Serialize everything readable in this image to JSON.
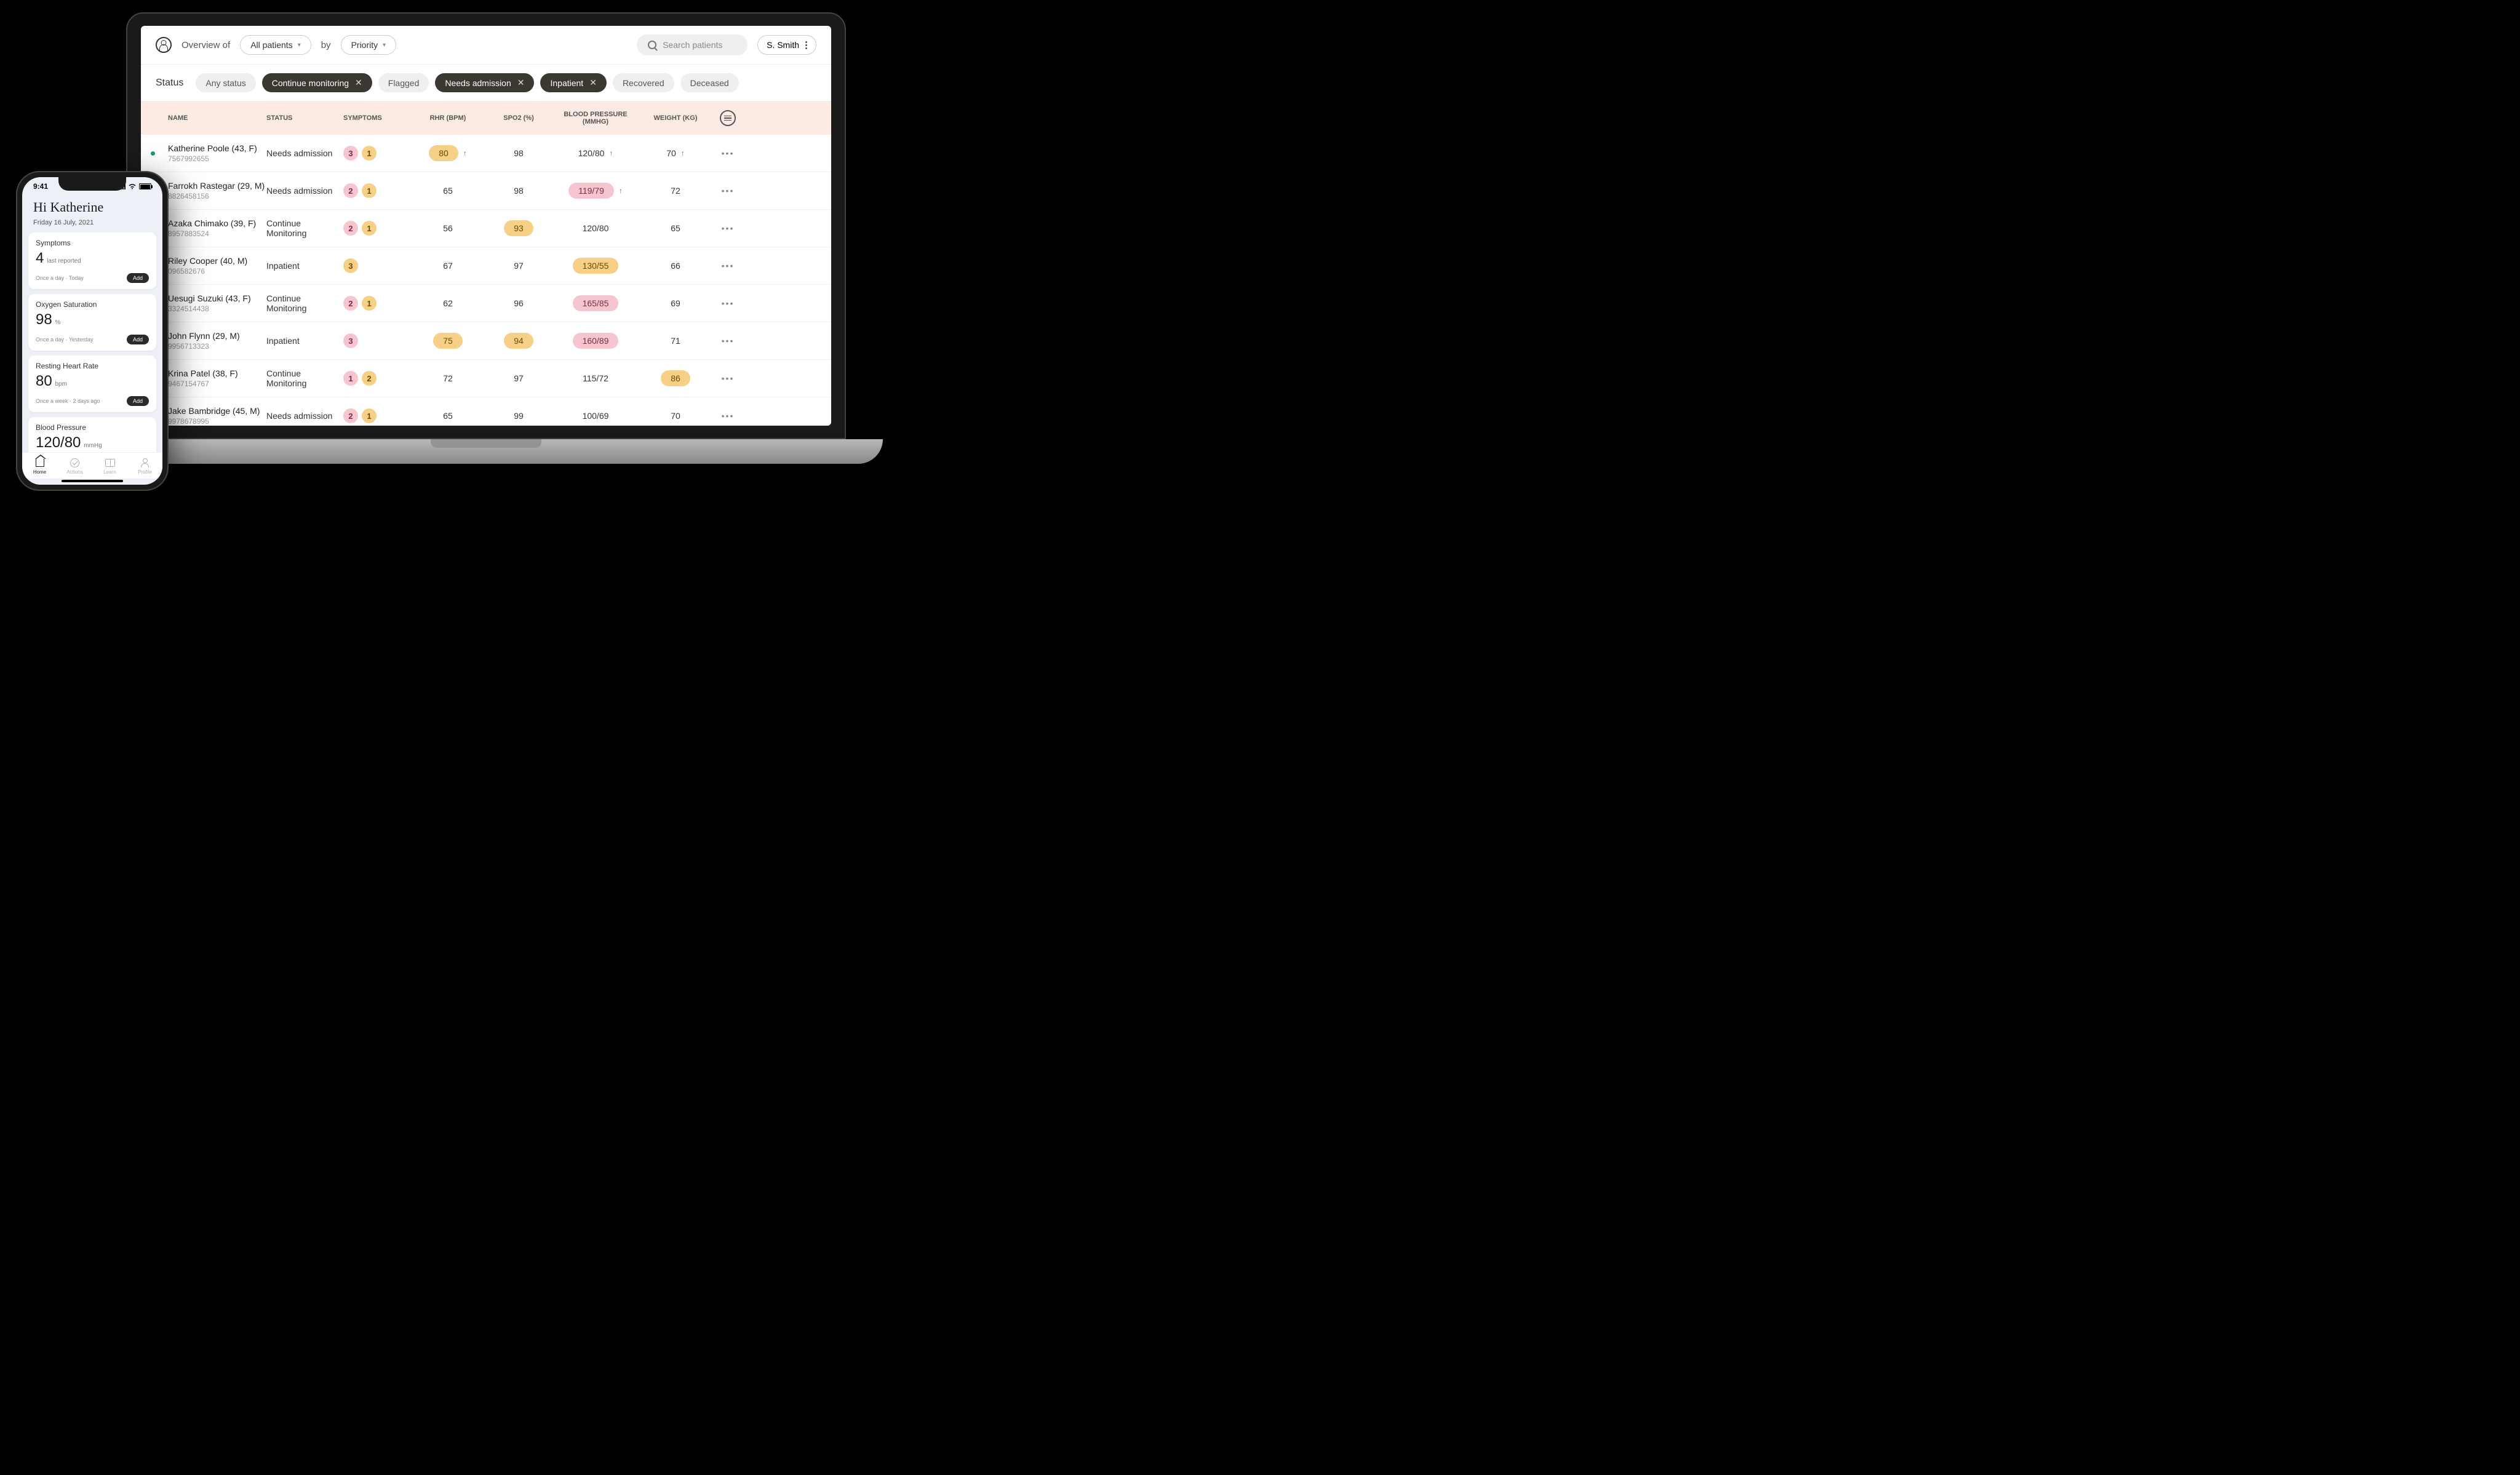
{
  "colors": {
    "pink": "#f6c5cf",
    "amber": "#f6d087",
    "dark_chip": "#3b3832",
    "light_chip": "#f1efed",
    "table_header_bg": "#fbebe3",
    "indicator_green": "#1a9b6c"
  },
  "desktop": {
    "header": {
      "overview_label": "Overview of",
      "patients_filter": "All patients",
      "by_label": "by",
      "sort_filter": "Priority",
      "search_placeholder": "Search patients",
      "user_name": "S. Smith"
    },
    "status": {
      "label": "Status",
      "chips": [
        {
          "label": "Any status",
          "active": false,
          "closable": false
        },
        {
          "label": "Continue monitoring",
          "active": true,
          "closable": true
        },
        {
          "label": "Flagged",
          "active": false,
          "closable": false
        },
        {
          "label": "Needs admission",
          "active": true,
          "closable": true
        },
        {
          "label": "Inpatient",
          "active": true,
          "closable": true
        },
        {
          "label": "Recovered",
          "active": false,
          "closable": false
        },
        {
          "label": "Deceased",
          "active": false,
          "closable": false
        }
      ]
    },
    "table": {
      "columns": {
        "name": "NAME",
        "status": "STATUS",
        "symptoms": "SYMPTOMS",
        "rhr": "RHR (BPM)",
        "spo2": "SPO2 (%)",
        "bp": "BLOOD PRESSURE (MMHG)",
        "weight": "WEIGHT (KG)"
      },
      "rows": [
        {
          "indicator": true,
          "name": "Katherine Poole (43, F)",
          "id": "7567992655",
          "status": "Needs admission",
          "sym_pink": "3",
          "sym_amber": "1",
          "rhr": "80",
          "rhr_hl": "amber",
          "rhr_arrow": true,
          "spo2": "98",
          "spo2_hl": null,
          "bp": "120/80",
          "bp_hl": null,
          "bp_arrow": true,
          "weight": "70",
          "weight_hl": null,
          "weight_arrow": true
        },
        {
          "indicator": true,
          "name": "Farrokh Rastegar (29, M)",
          "id": "8826458156",
          "status": "Needs admission",
          "sym_pink": "2",
          "sym_amber": "1",
          "rhr": "65",
          "rhr_hl": null,
          "spo2": "98",
          "spo2_hl": null,
          "bp": "119/79",
          "bp_hl": "pink",
          "bp_arrow": true,
          "weight": "72",
          "weight_hl": null
        },
        {
          "indicator": false,
          "name": "Azaka Chimako (39, F)",
          "id": "8957883524",
          "status": "Continue Monitoring",
          "sym_pink": "2",
          "sym_amber": "1",
          "rhr": "56",
          "rhr_hl": null,
          "spo2": "93",
          "spo2_hl": "amber",
          "bp": "120/80",
          "bp_hl": null,
          "weight": "65",
          "weight_hl": null
        },
        {
          "indicator": false,
          "name": "Riley Cooper (40, M)",
          "id": "096582676",
          "status": "Inpatient",
          "sym_pink": null,
          "sym_amber": "3",
          "rhr": "67",
          "rhr_hl": null,
          "spo2": "97",
          "spo2_hl": null,
          "bp": "130/55",
          "bp_hl": "amber",
          "weight": "66",
          "weight_hl": null
        },
        {
          "indicator": false,
          "name": "Uesugi Suzuki (43, F)",
          "id": "3324514438",
          "status": "Continue Monitoring",
          "sym_pink": "2",
          "sym_amber": "1",
          "rhr": "62",
          "rhr_hl": null,
          "spo2": "96",
          "spo2_hl": null,
          "bp": "165/85",
          "bp_hl": "pink",
          "weight": "69",
          "weight_hl": null
        },
        {
          "indicator": false,
          "name": "John Flynn (29, M)",
          "id": "9956713323",
          "status": "Inpatient",
          "sym_pink": "3",
          "sym_amber": null,
          "rhr": "75",
          "rhr_hl": "amber",
          "spo2": "94",
          "spo2_hl": "amber",
          "bp": "160/89",
          "bp_hl": "pink",
          "weight": "71",
          "weight_hl": null
        },
        {
          "indicator": false,
          "name": "Krina Patel (38, F)",
          "id": "9467154767",
          "status": "Continue Monitoring",
          "sym_pink": "1",
          "sym_amber": "2",
          "rhr": "72",
          "rhr_hl": null,
          "spo2": "97",
          "spo2_hl": null,
          "bp": "115/72",
          "bp_hl": null,
          "weight": "86",
          "weight_hl": "amber"
        },
        {
          "indicator": false,
          "name": "Jake Bambridge (45, M)",
          "id": "9978678995",
          "status": "Needs admission",
          "sym_pink": "2",
          "sym_amber": "1",
          "rhr": "65",
          "rhr_hl": null,
          "spo2": "99",
          "spo2_hl": null,
          "bp": "100/69",
          "bp_hl": null,
          "weight": "70",
          "weight_hl": null
        }
      ]
    }
  },
  "phone": {
    "status_time": "9:41",
    "greeting": "Hi Katherine",
    "date": "Friday 16 July, 2021",
    "add_label": "Add",
    "cards": [
      {
        "title": "Symptoms",
        "value": "4",
        "unit": "last reported",
        "freq": "Once a day · Today"
      },
      {
        "title": "Oxygen Saturation",
        "value": "98",
        "unit": "%",
        "freq": "Once a day · Yesterday"
      },
      {
        "title": "Resting Heart Rate",
        "value": "80",
        "unit": "bpm",
        "freq": "Once a week · 2 days ago"
      },
      {
        "title": "Blood Pressure",
        "value": "120/80",
        "unit": "mmHg",
        "freq": ""
      }
    ],
    "nav": [
      {
        "label": "Home",
        "active": true,
        "icon": "home"
      },
      {
        "label": "Actions",
        "active": false,
        "icon": "check"
      },
      {
        "label": "Learn",
        "active": false,
        "icon": "book"
      },
      {
        "label": "Profile",
        "active": false,
        "icon": "profile"
      }
    ]
  }
}
